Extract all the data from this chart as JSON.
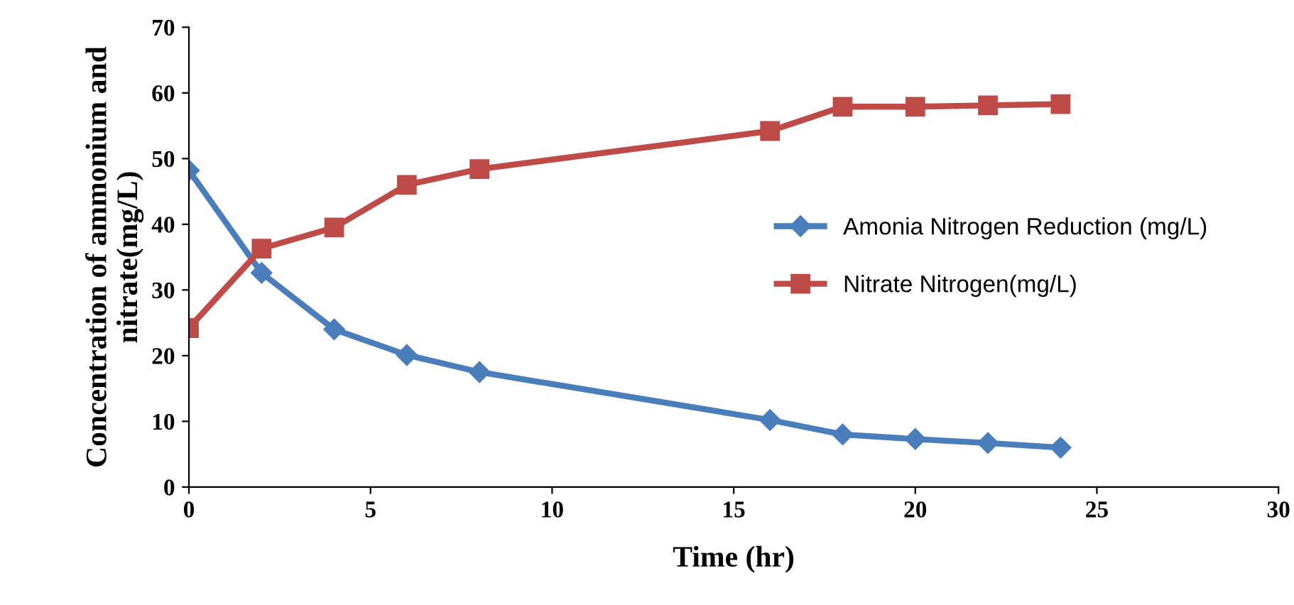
{
  "chart_data": {
    "type": "line",
    "xlabel": "Time (hr)",
    "ylabel": "Concentration of ammonium and nitrate(mg/L)",
    "x": [
      0,
      2,
      4,
      6,
      8,
      16,
      18,
      20,
      22,
      24
    ],
    "series": [
      {
        "name": "Amonia Nitrogen Reduction (mg/L)",
        "color": "#4a7ebb",
        "marker": "diamond",
        "values": [
          48.2,
          32.6,
          24,
          20.1,
          17.5,
          10.2,
          8,
          7.3,
          6.7,
          6
        ]
      },
      {
        "name": "Nitrate Nitrogen(mg/L)",
        "color": "#be4b48",
        "marker": "square",
        "values": [
          24.2,
          36.3,
          39.5,
          46,
          48.4,
          54.2,
          57.9,
          57.9,
          58.1,
          58.3
        ]
      }
    ],
    "xlim": [
      0,
      30
    ],
    "xticks": [
      0,
      5,
      10,
      15,
      20,
      25,
      30
    ],
    "ylim": [
      0,
      70
    ],
    "yticks": [
      0,
      10,
      20,
      30,
      40,
      50,
      60,
      70
    ],
    "grid": false,
    "legend": "right",
    "line_style": "solid"
  }
}
